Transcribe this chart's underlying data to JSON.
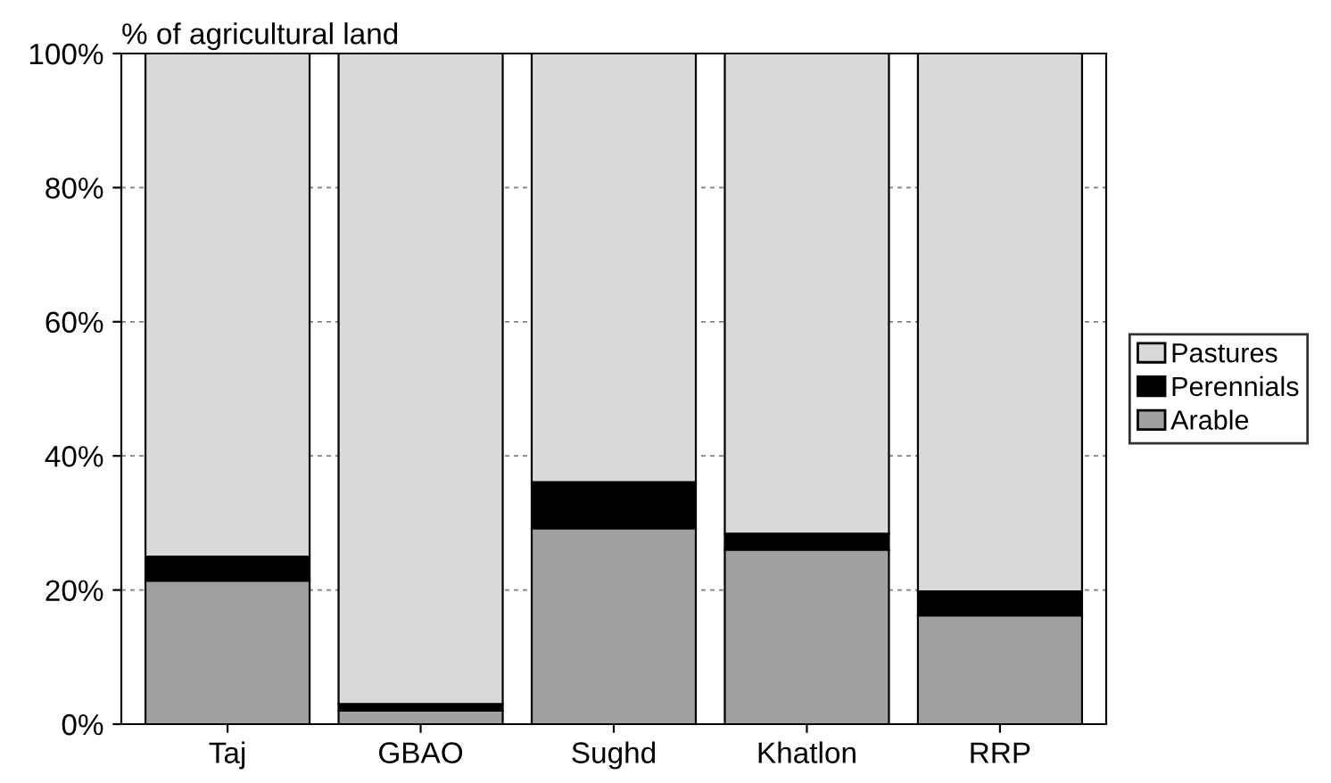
{
  "chart_data": {
    "type": "bar",
    "stacked": true,
    "ylabel": "% of agricultural land",
    "categories": [
      "Taj",
      "GBAO",
      "Sughd",
      "Khatlon",
      "RRP"
    ],
    "series": [
      {
        "name": "Arable",
        "color": "#a0a0a0",
        "values": [
          21.4,
          2,
          29.2,
          26,
          16.2
        ]
      },
      {
        "name": "Perennials",
        "color": "#000000",
        "values": [
          3.6,
          1,
          6.9,
          2.4,
          3.6
        ]
      },
      {
        "name": "Pastures",
        "color": "#d9d9d9",
        "values": [
          75,
          97,
          63.9,
          71.6,
          80.2
        ]
      }
    ],
    "ylim": [
      0,
      100
    ],
    "yticks": [
      {
        "value": 0,
        "label": "0%"
      },
      {
        "value": 20,
        "label": "20%"
      },
      {
        "value": 40,
        "label": "40%"
      },
      {
        "value": 60,
        "label": "60%"
      },
      {
        "value": 80,
        "label": "80%"
      },
      {
        "value": 100,
        "label": "100%"
      }
    ],
    "grid": "y",
    "legend": "right"
  }
}
